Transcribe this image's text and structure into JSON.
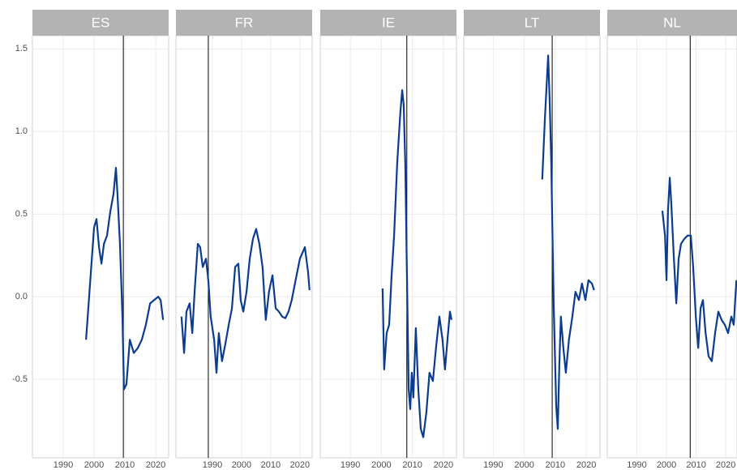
{
  "chart_data": [
    {
      "type": "line",
      "title": "ES",
      "xlim": [
        1980,
        2024.2
      ],
      "xticks": [
        1990,
        2000,
        2010,
        2020
      ],
      "ylim": [
        -0.975,
        1.58
      ],
      "yticks": [
        {
          "value": 1.5,
          "label": "1.5"
        },
        {
          "value": 1.0,
          "label": "1.0"
        },
        {
          "value": 0.5,
          "label": "0.5"
        },
        {
          "value": 0,
          "label": "0.0"
        },
        {
          "value": -0.5,
          "label": "-0.5"
        }
      ],
      "vline": 2009.5,
      "color": "#0b3c8f",
      "x": [
        1997.4,
        2000,
        2000.8,
        2001.6,
        2002.4,
        2003.2,
        2004.2,
        2005.3,
        2006.3,
        2007.1,
        2007.6,
        2008.4,
        2009.2,
        2009.7,
        2010.5,
        2011.6,
        2012.9,
        2014.2,
        2015.5,
        2016.8,
        2018.2,
        2019.5,
        2020.8,
        2021.6,
        2022.4
      ],
      "values": [
        -0.26,
        0.42,
        0.47,
        0.3,
        0.2,
        0.32,
        0.37,
        0.52,
        0.62,
        0.78,
        0.62,
        0.32,
        -0.12,
        -0.56,
        -0.53,
        -0.26,
        -0.34,
        -0.31,
        -0.26,
        -0.17,
        -0.04,
        -0.02,
        0,
        -0.02,
        -0.14
      ]
    },
    {
      "type": "line",
      "title": "FR",
      "xlim": [
        1977.5,
        2024.2
      ],
      "xticks": [
        1990,
        2000,
        2010,
        2020
      ],
      "ylim": [
        -0.975,
        1.58
      ],
      "vline": 1988.6,
      "color": "#0b3c8f",
      "x": [
        1979.4,
        1980.3,
        1981.1,
        1982.2,
        1983.1,
        1983.9,
        1985,
        1985.8,
        1986.7,
        1987.8,
        1988.6,
        1989.4,
        1990.6,
        1991.4,
        1992.2,
        1993.3,
        1994.4,
        1995.6,
        1996.7,
        1997.8,
        1998.9,
        1999.7,
        2000.6,
        2001.7,
        2002.8,
        2003.9,
        2005,
        2006.1,
        2007.2,
        2008.3,
        2009.4,
        2010.6,
        2011.7,
        2012.8,
        2013.9,
        2015,
        2016.1,
        2017.2,
        2018.3,
        2020,
        2021.7,
        2022.8,
        2023.3
      ],
      "values": [
        -0.12,
        -0.34,
        -0.09,
        -0.04,
        -0.22,
        0.03,
        0.32,
        0.3,
        0.18,
        0.23,
        0.1,
        -0.12,
        -0.26,
        -0.46,
        -0.22,
        -0.39,
        -0.29,
        -0.17,
        -0.07,
        0.18,
        0.2,
        -0.02,
        -0.09,
        0.03,
        0.23,
        0.35,
        0.41,
        0.32,
        0.18,
        -0.14,
        0.03,
        0.13,
        -0.07,
        -0.09,
        -0.12,
        -0.13,
        -0.09,
        -0.02,
        0.08,
        0.23,
        0.3,
        0.15,
        0.04
      ]
    },
    {
      "type": "line",
      "title": "IE",
      "xlim": [
        1980.3,
        2024.2
      ],
      "xticks": [
        1990,
        2000,
        2010,
        2020
      ],
      "ylim": [
        -0.975,
        1.58
      ],
      "vline": 2008.2,
      "color": "#0b3c8f",
      "x": [
        2000.4,
        2000.9,
        2001.7,
        2002.5,
        2003.3,
        2004.1,
        2005.1,
        2006.1,
        2006.7,
        2007.2,
        2007.7,
        2008.2,
        2008.8,
        2009.3,
        2009.8,
        2010.3,
        2011.1,
        2011.9,
        2012.7,
        2013.5,
        2014.5,
        2015.5,
        2016.6,
        2017.6,
        2018.7,
        2019.7,
        2020.5,
        2021.3,
        2022.1,
        2022.6
      ],
      "values": [
        0.05,
        -0.44,
        -0.22,
        -0.17,
        0.13,
        0.37,
        0.81,
        1.11,
        1.25,
        1.16,
        0.81,
        0.18,
        -0.56,
        -0.68,
        -0.46,
        -0.61,
        -0.19,
        -0.56,
        -0.8,
        -0.85,
        -0.7,
        -0.46,
        -0.51,
        -0.31,
        -0.12,
        -0.26,
        -0.44,
        -0.26,
        -0.09,
        -0.14
      ]
    },
    {
      "type": "line",
      "title": "LT",
      "xlim": [
        1980.5,
        2024.4
      ],
      "xticks": [
        1990,
        2000,
        2010,
        2020
      ],
      "ylim": [
        -0.975,
        1.58
      ],
      "vline": 2009,
      "color": "#0b3c8f",
      "x": [
        2005.8,
        2006.6,
        2007.7,
        2008.2,
        2008.7,
        2009.5,
        2010.3,
        2010.8,
        2011.3,
        2011.8,
        2012.6,
        2013.4,
        2014.4,
        2015.5,
        2016.5,
        2017.6,
        2018.6,
        2019.7,
        2020.7,
        2021.8,
        2022.5
      ],
      "values": [
        0.71,
        1.06,
        1.46,
        1.18,
        0.81,
        -0.07,
        -0.66,
        -0.8,
        -0.41,
        -0.12,
        -0.31,
        -0.46,
        -0.26,
        -0.12,
        0.03,
        -0.02,
        0.08,
        -0.02,
        0.1,
        0.08,
        0.04
      ]
    },
    {
      "type": "line",
      "title": "NL",
      "xlim": [
        1980,
        2023.8
      ],
      "xticks": [
        1990,
        2000,
        2010,
        2020
      ],
      "ylim": [
        -0.975,
        1.58
      ],
      "vline": 2008,
      "color": "#0b3c8f",
      "x": [
        1998.6,
        1999.5,
        2000,
        2000.5,
        2001.1,
        2001.6,
        2002.5,
        2003.3,
        2004.1,
        2004.9,
        2006,
        2007.1,
        2008.2,
        2009,
        2009.9,
        2010.7,
        2011.5,
        2012.3,
        2013.2,
        2014.2,
        2015.3,
        2016.4,
        2017.5,
        2018.6,
        2019.7,
        2020.8,
        2021.9,
        2022.7,
        2023.6
      ],
      "values": [
        0.52,
        0.37,
        0.1,
        0.52,
        0.72,
        0.57,
        0.23,
        -0.04,
        0.23,
        0.32,
        0.35,
        0.37,
        0.37,
        0.18,
        -0.12,
        -0.31,
        -0.07,
        -0.02,
        -0.22,
        -0.36,
        -0.39,
        -0.22,
        -0.09,
        -0.14,
        -0.17,
        -0.22,
        -0.12,
        -0.17,
        0.1
      ]
    }
  ]
}
